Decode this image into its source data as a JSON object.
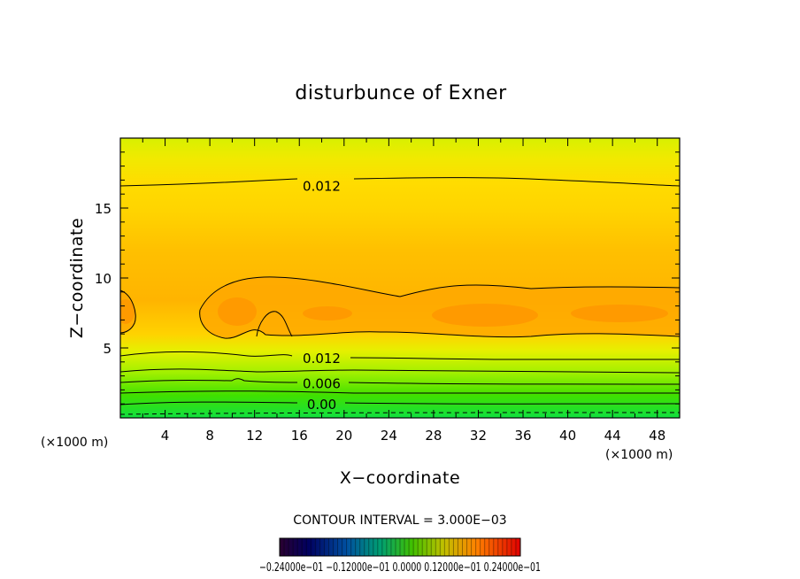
{
  "chart_data": {
    "type": "heatmap",
    "title": "disturbunce of Exner",
    "xlabel": "X−coordinate",
    "ylabel": "Z−coordinate",
    "x_unit": "(×1000 m)",
    "y_unit": "(×1000 m)",
    "xlim": [
      0,
      50
    ],
    "ylim": [
      0,
      20
    ],
    "x_ticks": [
      4,
      8,
      12,
      16,
      20,
      24,
      28,
      32,
      36,
      40,
      44,
      48
    ],
    "y_ticks": [
      5,
      10,
      15
    ],
    "x_tick_labels": [
      "4",
      "8",
      "12",
      "16",
      "20",
      "24",
      "28",
      "32",
      "36",
      "40",
      "44",
      "48"
    ],
    "y_tick_labels": [
      "5",
      "10",
      "15"
    ],
    "contour_interval_text": "CONTOUR INTERVAL = 3.000E−03",
    "contour_interval": 0.003,
    "contour_labels": [
      {
        "text": "0.012",
        "x": 18,
        "z": 16.6
      },
      {
        "text": "0.012",
        "x": 18,
        "z": 4.3
      },
      {
        "text": "0.006",
        "x": 18,
        "z": 2.5
      },
      {
        "text": "0.00",
        "x": 18,
        "z": 1.0
      }
    ],
    "labeled_contour_heights": [
      {
        "value": 0.012,
        "z": 16.6
      },
      {
        "value": 0.012,
        "z": 4.4
      },
      {
        "value": 0.006,
        "z": 2.5
      },
      {
        "value": 0.0,
        "z": 1.0
      }
    ],
    "colorbar_labels_text": "−0.24000e−01 −0.12000e−01 0.0000 0.12000e−01 0.24000e−01",
    "colorbar_range": [
      -0.024,
      0.024
    ],
    "colors": {
      "green": "#19e01a",
      "yellow_green": "#cdf000",
      "yellow": "#ffd800",
      "orange_light": "#ffb800",
      "orange": "#ff9f00",
      "contour": "#000000"
    }
  }
}
